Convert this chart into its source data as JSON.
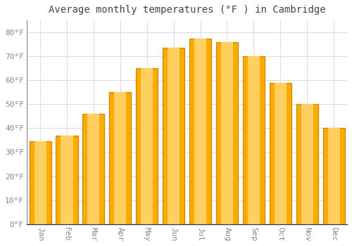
{
  "title": "Average monthly temperatures (°F ) in Cambridge",
  "months": [
    "Jan",
    "Feb",
    "Mar",
    "Apr",
    "May",
    "Jun",
    "Jul",
    "Aug",
    "Sep",
    "Oct",
    "Nov",
    "Dec"
  ],
  "values": [
    34.5,
    37.0,
    46.0,
    55.0,
    65.0,
    73.5,
    77.5,
    76.0,
    70.0,
    59.0,
    50.0,
    40.0
  ],
  "bar_color": "#FFAA00",
  "bar_edge_color": "#CC8800",
  "background_color": "#FFFFFF",
  "grid_color": "#DDDDDD",
  "yticks": [
    0,
    10,
    20,
    30,
    40,
    50,
    60,
    70,
    80
  ],
  "ylim": [
    0,
    85
  ],
  "title_fontsize": 10,
  "tick_fontsize": 8,
  "tick_font": "monospace"
}
